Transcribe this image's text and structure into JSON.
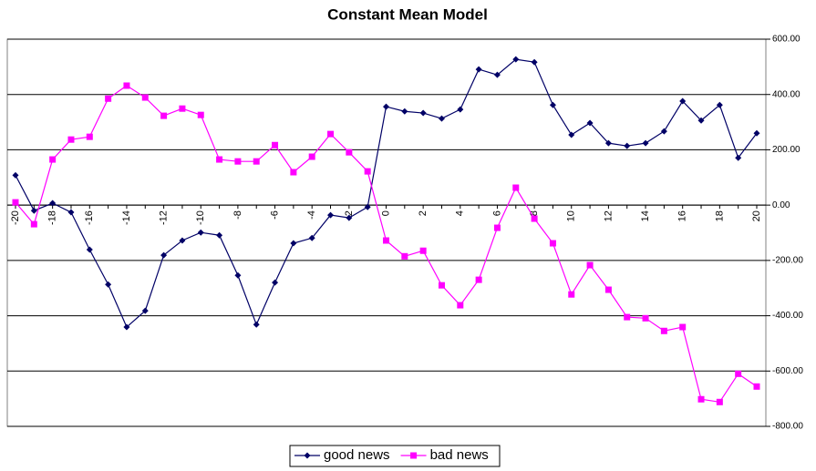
{
  "chart_data": {
    "type": "line",
    "title": "Constant Mean Model",
    "categories": [
      "-20",
      null,
      "-18",
      null,
      "-16",
      null,
      "-14",
      null,
      "-12",
      null,
      "-10",
      null,
      "-8",
      null,
      "-6",
      null,
      "-4",
      null,
      "-2",
      null,
      "0",
      null,
      "2",
      null,
      "4",
      null,
      "6",
      null,
      "8",
      null,
      "10",
      null,
      "12",
      null,
      "14",
      null,
      "16",
      null,
      "18",
      null,
      "20"
    ],
    "series": [
      {
        "name": "good news",
        "color": "#000066",
        "marker": "diamond",
        "values": [
          108,
          -20,
          7,
          -26,
          -161,
          -287,
          -441,
          -382,
          -181,
          -128,
          -99,
          -109,
          -254,
          -432,
          -280,
          -138,
          -119,
          -36,
          -46,
          -7,
          356,
          339,
          333,
          313,
          346,
          491,
          471,
          527,
          517,
          362,
          254,
          297,
          224,
          214,
          224,
          267,
          376,
          306,
          362,
          171,
          260
        ]
      },
      {
        "name": "bad news",
        "color": "#ff00ff",
        "marker": "square",
        "values": [
          10,
          -69,
          165,
          237,
          247,
          385,
          432,
          389,
          323,
          349,
          326,
          165,
          158,
          158,
          217,
          119,
          175,
          257,
          191,
          122,
          -128,
          -185,
          -165,
          -290,
          -362,
          -270,
          -82,
          63,
          -49,
          -138,
          -323,
          -217,
          -306,
          -405,
          -409,
          -455,
          -441,
          -702,
          -712,
          -610,
          -656
        ]
      }
    ],
    "ylim": [
      -800,
      600
    ],
    "yticks": [
      {
        "value": -800,
        "label": "-800.00"
      },
      {
        "value": -600,
        "label": "-600.00"
      },
      {
        "value": -400,
        "label": "-400.00"
      },
      {
        "value": -200,
        "label": "-200.00"
      },
      {
        "value": 0,
        "label": "0.00"
      },
      {
        "value": 200,
        "label": "200.00"
      },
      {
        "value": 400,
        "label": "400.00"
      },
      {
        "value": 600,
        "label": "600.00"
      }
    ],
    "grid": true,
    "legend": "bottom"
  }
}
